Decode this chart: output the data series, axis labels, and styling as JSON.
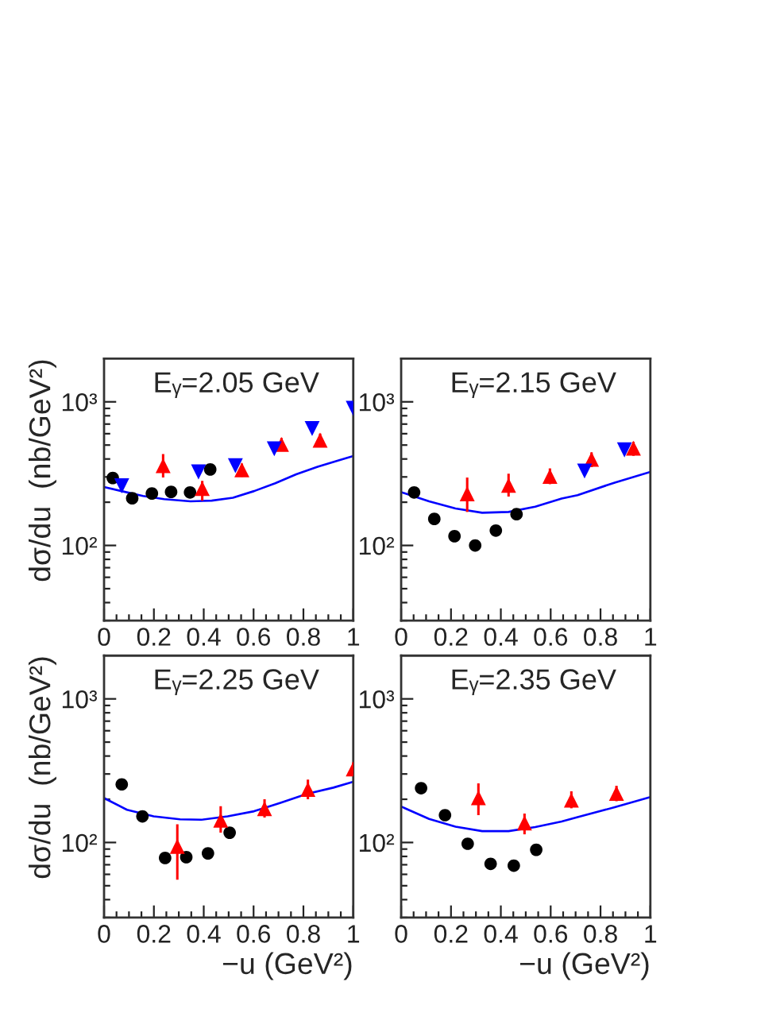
{
  "chart_data": [
    {
      "type": "scatter",
      "title": "Eᵧ=2.05 GeV",
      "ylabel": "dσ/du  (nb/GeV²)",
      "log": "y",
      "xlim": [
        0,
        1
      ],
      "ylim": [
        30,
        2000
      ],
      "xticks": [
        0,
        {
          "value": 0.05,
          "label": null
        },
        {
          "value": 0.1,
          "label": null
        },
        {
          "value": 0.15,
          "label": null
        },
        0.2,
        {
          "value": 0.25,
          "label": null
        },
        {
          "value": 0.3,
          "label": null
        },
        {
          "value": 0.35,
          "label": null
        },
        0.4,
        {
          "value": 0.45,
          "label": null
        },
        {
          "value": 0.5,
          "label": null
        },
        {
          "value": 0.55,
          "label": null
        },
        0.6,
        {
          "value": 0.65,
          "label": null
        },
        {
          "value": 0.7,
          "label": null
        },
        {
          "value": 0.75,
          "label": null
        },
        0.8,
        {
          "value": 0.85,
          "label": null
        },
        {
          "value": 0.9,
          "label": null
        },
        {
          "value": 0.95,
          "label": null
        },
        1
      ],
      "yticks": [
        {
          "value": 30,
          "label": null
        },
        {
          "value": 40,
          "label": null
        },
        {
          "value": 50,
          "label": null
        },
        {
          "value": 60,
          "label": null
        },
        {
          "value": 70,
          "label": null
        },
        {
          "value": 80,
          "label": null
        },
        {
          "value": 90,
          "label": null
        },
        {
          "value": 100,
          "label": "10²"
        },
        {
          "value": 200,
          "label": null
        },
        {
          "value": 300,
          "label": null
        },
        {
          "value": 400,
          "label": null
        },
        {
          "value": 500,
          "label": null
        },
        {
          "value": 600,
          "label": null
        },
        {
          "value": 700,
          "label": null
        },
        {
          "value": 800,
          "label": null
        },
        {
          "value": 900,
          "label": null
        },
        {
          "value": 1000,
          "label": "10³"
        }
      ],
      "series": [
        {
          "marker": "circle",
          "color": "#000000",
          "x": [
            0.035,
            0.113,
            0.192,
            0.269,
            0.345,
            0.426
          ],
          "values": [
            295,
            213,
            230,
            236,
            234,
            338
          ]
        },
        {
          "marker": "triangle",
          "color": "#ff0000",
          "x": [
            0.237,
            0.394,
            0.553,
            0.712,
            0.867
          ],
          "values": [
            359,
            249,
            336,
            505,
            541
          ],
          "errors": [
            [
              297,
              433
            ],
            [
              205,
              282
            ],
            [
              300,
              372
            ],
            [
              456,
              560
            ],
            [
              497,
              600
            ]
          ]
        },
        {
          "marker": "triangle_down",
          "color": "#0000ff",
          "x": [
            0.071,
            0.379,
            0.527,
            0.683,
            0.835,
            1.0
          ],
          "values": [
            260,
            325,
            359,
            471,
            652,
            900
          ]
        },
        {
          "type": "line",
          "color": "#0000ff",
          "x": [
            0,
            0.07,
            0.156,
            0.241,
            0.347,
            0.432,
            0.517,
            0.602,
            0.687,
            0.771,
            0.857,
            0.941,
            1.0
          ],
          "values": [
            255,
            239,
            221,
            210,
            203,
            205,
            215,
            239,
            271,
            313,
            353,
            391,
            419
          ]
        }
      ]
    },
    {
      "type": "scatter",
      "title": "Eᵧ=2.15 GeV",
      "log": "y",
      "xlim": [
        0,
        1
      ],
      "ylim": [
        30,
        2000
      ],
      "xticks": [
        0,
        {
          "value": 0.05,
          "label": null
        },
        {
          "value": 0.1,
          "label": null
        },
        {
          "value": 0.15,
          "label": null
        },
        0.2,
        {
          "value": 0.25,
          "label": null
        },
        {
          "value": 0.3,
          "label": null
        },
        {
          "value": 0.35,
          "label": null
        },
        0.4,
        {
          "value": 0.45,
          "label": null
        },
        {
          "value": 0.5,
          "label": null
        },
        {
          "value": 0.55,
          "label": null
        },
        0.6,
        {
          "value": 0.65,
          "label": null
        },
        {
          "value": 0.7,
          "label": null
        },
        {
          "value": 0.75,
          "label": null
        },
        0.8,
        {
          "value": 0.85,
          "label": null
        },
        {
          "value": 0.9,
          "label": null
        },
        {
          "value": 0.95,
          "label": null
        },
        1
      ],
      "yticks": [
        {
          "value": 30,
          "label": null
        },
        {
          "value": 40,
          "label": null
        },
        {
          "value": 50,
          "label": null
        },
        {
          "value": 60,
          "label": null
        },
        {
          "value": 70,
          "label": null
        },
        {
          "value": 80,
          "label": null
        },
        {
          "value": 90,
          "label": null
        },
        {
          "value": 100,
          "label": "10²"
        },
        {
          "value": 200,
          "label": null
        },
        {
          "value": 300,
          "label": null
        },
        {
          "value": 400,
          "label": null
        },
        {
          "value": 500,
          "label": null
        },
        {
          "value": 600,
          "label": null
        },
        {
          "value": 700,
          "label": null
        },
        {
          "value": 800,
          "label": null
        },
        {
          "value": 900,
          "label": null
        },
        {
          "value": 1000,
          "label": "10³"
        }
      ],
      "series": [
        {
          "marker": "circle",
          "color": "#000000",
          "x": [
            0.052,
            0.133,
            0.214,
            0.297,
            0.38,
            0.463
          ],
          "values": [
            234,
            153,
            116,
            100,
            127,
            165
          ]
        },
        {
          "marker": "triangle",
          "color": "#ff0000",
          "x": [
            0.265,
            0.431,
            0.597,
            0.764,
            0.932
          ],
          "values": [
            229,
            262,
            303,
            398,
            476
          ],
          "errors": [
            [
              171,
              297
            ],
            [
              219,
              316
            ],
            [
              267,
              344
            ],
            [
              351,
              445
            ],
            [
              420,
              527
            ]
          ]
        },
        {
          "marker": "triangle_down",
          "color": "#0000ff",
          "x": [
            0.736,
            0.896
          ],
          "values": [
            330,
            463
          ]
        },
        {
          "type": "line",
          "color": "#0000ff",
          "x": [
            0,
            0.112,
            0.218,
            0.325,
            0.431,
            0.538,
            0.644,
            0.708,
            0.857,
            1.0
          ],
          "values": [
            235,
            203,
            181,
            169,
            171,
            186,
            212,
            224,
            274,
            325
          ]
        }
      ]
    },
    {
      "type": "scatter",
      "title": "Eᵧ=2.25 GeV",
      "ylabel": "dσ/du  (nb/GeV²)",
      "xlabel": "−u (GeV²)",
      "log": "y",
      "xlim": [
        0,
        1
      ],
      "ylim": [
        30,
        2000
      ],
      "xticks": [
        0,
        {
          "value": 0.05,
          "label": null
        },
        {
          "value": 0.1,
          "label": null
        },
        {
          "value": 0.15,
          "label": null
        },
        0.2,
        {
          "value": 0.25,
          "label": null
        },
        {
          "value": 0.3,
          "label": null
        },
        {
          "value": 0.35,
          "label": null
        },
        0.4,
        {
          "value": 0.45,
          "label": null
        },
        {
          "value": 0.5,
          "label": null
        },
        {
          "value": 0.55,
          "label": null
        },
        0.6,
        {
          "value": 0.65,
          "label": null
        },
        {
          "value": 0.7,
          "label": null
        },
        {
          "value": 0.75,
          "label": null
        },
        0.8,
        {
          "value": 0.85,
          "label": null
        },
        {
          "value": 0.9,
          "label": null
        },
        {
          "value": 0.95,
          "label": null
        },
        1
      ],
      "yticks": [
        {
          "value": 30,
          "label": null
        },
        {
          "value": 40,
          "label": null
        },
        {
          "value": 50,
          "label": null
        },
        {
          "value": 60,
          "label": null
        },
        {
          "value": 70,
          "label": null
        },
        {
          "value": 80,
          "label": null
        },
        {
          "value": 90,
          "label": null
        },
        {
          "value": 100,
          "label": "10²"
        },
        {
          "value": 200,
          "label": null
        },
        {
          "value": 300,
          "label": null
        },
        {
          "value": 400,
          "label": null
        },
        {
          "value": 500,
          "label": null
        },
        {
          "value": 600,
          "label": null
        },
        {
          "value": 700,
          "label": null
        },
        {
          "value": 800,
          "label": null
        },
        {
          "value": 900,
          "label": null
        },
        {
          "value": 1000,
          "label": "10³"
        }
      ],
      "series": [
        {
          "marker": "circle",
          "color": "#000000",
          "x": [
            0.071,
            0.154,
            0.245,
            0.33,
            0.417,
            0.504
          ],
          "values": [
            254,
            152,
            78,
            79,
            84,
            117
          ]
        },
        {
          "marker": "triangle",
          "color": "#ff0000",
          "x": [
            0.294,
            0.468,
            0.644,
            0.818,
            1.0
          ],
          "values": [
            94,
            143,
            172,
            234,
            325
          ],
          "errors": [
            [
              55,
              134
            ],
            [
              117,
              179
            ],
            [
              149,
              200
            ],
            [
              200,
              274
            ],
            [
              293,
              362
            ]
          ]
        },
        {
          "type": "line",
          "color": "#0000ff",
          "x": [
            0,
            0.092,
            0.199,
            0.305,
            0.39,
            0.496,
            0.602,
            0.708,
            0.814,
            0.92,
            1.0
          ],
          "values": [
            204,
            169,
            152,
            145,
            144,
            152,
            165,
            189,
            218,
            241,
            265
          ]
        }
      ]
    },
    {
      "type": "scatter",
      "title": "Eᵧ=2.35 GeV",
      "xlabel": "−u (GeV²)",
      "log": "y",
      "xlim": [
        0,
        1
      ],
      "ylim": [
        30,
        2000
      ],
      "xticks": [
        0,
        {
          "value": 0.05,
          "label": null
        },
        {
          "value": 0.1,
          "label": null
        },
        {
          "value": 0.15,
          "label": null
        },
        0.2,
        {
          "value": 0.25,
          "label": null
        },
        {
          "value": 0.3,
          "label": null
        },
        {
          "value": 0.35,
          "label": null
        },
        0.4,
        {
          "value": 0.45,
          "label": null
        },
        {
          "value": 0.5,
          "label": null
        },
        {
          "value": 0.55,
          "label": null
        },
        0.6,
        {
          "value": 0.65,
          "label": null
        },
        {
          "value": 0.7,
          "label": null
        },
        {
          "value": 0.75,
          "label": null
        },
        0.8,
        {
          "value": 0.85,
          "label": null
        },
        {
          "value": 0.9,
          "label": null
        },
        {
          "value": 0.95,
          "label": null
        },
        1
      ],
      "yticks": [
        {
          "value": 30,
          "label": null
        },
        {
          "value": 40,
          "label": null
        },
        {
          "value": 50,
          "label": null
        },
        {
          "value": 60,
          "label": null
        },
        {
          "value": 70,
          "label": null
        },
        {
          "value": 80,
          "label": null
        },
        {
          "value": 90,
          "label": null
        },
        {
          "value": 100,
          "label": "10²"
        },
        {
          "value": 200,
          "label": null
        },
        {
          "value": 300,
          "label": null
        },
        {
          "value": 400,
          "label": null
        },
        {
          "value": 500,
          "label": null
        },
        {
          "value": 600,
          "label": null
        },
        {
          "value": 700,
          "label": null
        },
        {
          "value": 800,
          "label": null
        },
        {
          "value": 900,
          "label": null
        },
        {
          "value": 1000,
          "label": "10³"
        }
      ],
      "series": [
        {
          "marker": "circle",
          "color": "#000000",
          "x": [
            0.08,
            0.176,
            0.267,
            0.359,
            0.452,
            0.542
          ],
          "values": [
            239,
            155,
            98,
            71,
            69,
            89
          ]
        },
        {
          "marker": "triangle",
          "color": "#ff0000",
          "x": [
            0.31,
            0.495,
            0.683,
            0.864
          ],
          "values": [
            205,
            137,
            197,
            220
          ],
          "errors": [
            [
              155,
              258
            ],
            [
              114,
              159
            ],
            [
              173,
              227
            ],
            [
              194,
              248
            ]
          ]
        },
        {
          "type": "line",
          "color": "#0000ff",
          "x": [
            0,
            0.112,
            0.218,
            0.325,
            0.431,
            0.538,
            0.644,
            0.708,
            0.857,
            1.0
          ],
          "values": [
            178,
            146,
            129,
            120,
            120,
            128,
            140,
            150,
            176,
            207
          ]
        }
      ]
    }
  ]
}
